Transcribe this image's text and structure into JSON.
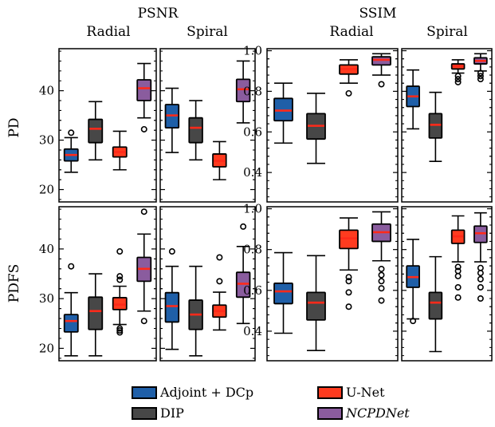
{
  "chart_data": {
    "type": "box",
    "group_titles": [
      "PSNR",
      "SSIM"
    ],
    "column_labels": [
      "Radial",
      "Spiral",
      "Radial",
      "Spiral"
    ],
    "row_labels": [
      "PD",
      "PDFS"
    ],
    "legend": [
      {
        "name": "Adjoint + DCp",
        "color": "#1f5fa8",
        "italic": false
      },
      {
        "name": "U-Net",
        "color": "#ff3b1f",
        "italic": false
      },
      {
        "name": "DIP",
        "color": "#474747",
        "italic": false
      },
      {
        "name": "NCPDNet",
        "color": "#8a5c9e",
        "italic": true
      }
    ],
    "axes": {
      "psnr": {
        "ylim": [
          17.5,
          48.5
        ],
        "ticks": [
          20,
          30,
          40
        ],
        "tick_labels": [
          "20",
          "30",
          "40"
        ]
      },
      "ssim": {
        "ylim": [
          0.255,
          1.01
        ],
        "ticks": [
          0.4,
          0.6,
          0.8,
          1.0
        ],
        "tick_labels": [
          "0.4",
          "0.6",
          "0.8",
          "1.0"
        ]
      }
    },
    "panels": [
      {
        "row": "PD",
        "metric": "PSNR",
        "trajectory": "Radial",
        "boxes": [
          {
            "method": "Adjoint + DCp",
            "whislo": 23.5,
            "q1": 25.8,
            "med": 27.0,
            "q3": 28.2,
            "whishi": 30.5,
            "fliers": [
              31.5
            ]
          },
          {
            "method": "DIP",
            "whislo": 26.0,
            "q1": 29.5,
            "med": 32.3,
            "q3": 34.2,
            "whishi": 37.8,
            "fliers": []
          },
          {
            "method": "U-Net",
            "whislo": 24.0,
            "q1": 26.6,
            "med": 27.6,
            "q3": 28.6,
            "whishi": 31.8,
            "fliers": []
          },
          {
            "method": "NCPDNet",
            "whislo": 34.5,
            "q1": 38.0,
            "med": 40.5,
            "q3": 42.2,
            "whishi": 45.5,
            "fliers": [
              32.2
            ]
          }
        ]
      },
      {
        "row": "PD",
        "metric": "PSNR",
        "trajectory": "Spiral",
        "boxes": [
          {
            "method": "Adjoint + DCp",
            "whislo": 27.5,
            "q1": 32.5,
            "med": 35.0,
            "q3": 37.2,
            "whishi": 40.5,
            "fliers": []
          },
          {
            "method": "DIP",
            "whislo": 26.0,
            "q1": 29.5,
            "med": 32.5,
            "q3": 34.5,
            "whishi": 38.0,
            "fliers": []
          },
          {
            "method": "U-Net",
            "whislo": 22.0,
            "q1": 24.6,
            "med": 25.8,
            "q3": 27.2,
            "whishi": 29.7,
            "fliers": []
          },
          {
            "method": "NCPDNet",
            "whislo": 33.5,
            "q1": 37.8,
            "med": 40.3,
            "q3": 42.3,
            "whishi": 46.0,
            "fliers": []
          }
        ]
      },
      {
        "row": "PD",
        "metric": "SSIM",
        "trajectory": "Radial",
        "boxes": [
          {
            "method": "Adjoint + DCp",
            "whislo": 0.545,
            "q1": 0.655,
            "med": 0.705,
            "q3": 0.765,
            "whishi": 0.84,
            "fliers": []
          },
          {
            "method": "DIP",
            "whislo": 0.445,
            "q1": 0.565,
            "med": 0.63,
            "q3": 0.69,
            "whishi": 0.79,
            "fliers": []
          },
          {
            "method": "U-Net",
            "whislo": 0.84,
            "q1": 0.885,
            "med": 0.91,
            "q3": 0.93,
            "whishi": 0.955,
            "fliers": [
              0.79
            ]
          },
          {
            "method": "NCPDNet",
            "whislo": 0.88,
            "q1": 0.93,
            "med": 0.955,
            "q3": 0.97,
            "whishi": 0.985,
            "fliers": [
              0.835
            ]
          }
        ]
      },
      {
        "row": "PD",
        "metric": "SSIM",
        "trajectory": "Spiral",
        "boxes": [
          {
            "method": "Adjoint + DCp",
            "whislo": 0.615,
            "q1": 0.725,
            "med": 0.775,
            "q3": 0.825,
            "whishi": 0.905,
            "fliers": []
          },
          {
            "method": "DIP",
            "whislo": 0.455,
            "q1": 0.57,
            "med": 0.635,
            "q3": 0.69,
            "whishi": 0.795,
            "fliers": []
          },
          {
            "method": "U-Net",
            "whislo": 0.89,
            "q1": 0.91,
            "med": 0.925,
            "q3": 0.935,
            "whishi": 0.955,
            "fliers": [
              0.875,
              0.86,
              0.845
            ]
          },
          {
            "method": "NCPDNet",
            "whislo": 0.9,
            "q1": 0.935,
            "med": 0.95,
            "q3": 0.965,
            "whishi": 0.985,
            "fliers": [
              0.89,
              0.875,
              0.86
            ]
          }
        ]
      },
      {
        "row": "PDFS",
        "metric": "PSNR",
        "trajectory": "Radial",
        "boxes": [
          {
            "method": "Adjoint + DCp",
            "whislo": 18.5,
            "q1": 23.3,
            "med": 25.5,
            "q3": 26.8,
            "whishi": 31.2,
            "fliers": [
              36.5
            ]
          },
          {
            "method": "DIP",
            "whislo": 18.5,
            "q1": 23.8,
            "med": 27.5,
            "q3": 30.3,
            "whishi": 35.0,
            "fliers": []
          },
          {
            "method": "U-Net",
            "whislo": 24.8,
            "q1": 27.8,
            "med": 28.8,
            "q3": 30.2,
            "whishi": 32.5,
            "fliers": [
              39.5,
              34.5,
              33.8,
              24.0,
              23.6,
              23.2
            ]
          },
          {
            "method": "NCPDNet",
            "whislo": 27.5,
            "q1": 33.5,
            "med": 36.0,
            "q3": 38.3,
            "whishi": 43.0,
            "fliers": [
              47.5,
              25.5
            ]
          }
        ]
      },
      {
        "row": "PDFS",
        "metric": "PSNR",
        "trajectory": "Spiral",
        "boxes": [
          {
            "method": "Adjoint + DCp",
            "whislo": 19.8,
            "q1": 25.3,
            "med": 28.5,
            "q3": 31.2,
            "whishi": 36.5,
            "fliers": [
              39.5
            ]
          },
          {
            "method": "DIP",
            "whislo": 18.5,
            "q1": 23.8,
            "med": 26.8,
            "q3": 29.7,
            "whishi": 36.5,
            "fliers": []
          },
          {
            "method": "U-Net",
            "whislo": 23.7,
            "q1": 26.3,
            "med": 27.5,
            "q3": 28.7,
            "whishi": 31.3,
            "fliers": [
              38.3,
              33.5
            ]
          },
          {
            "method": "NCPDNet",
            "whislo": 25.0,
            "q1": 30.3,
            "med": 33.0,
            "q3": 35.3,
            "whishi": 40.5,
            "fliers": [
              44.5
            ]
          }
        ]
      },
      {
        "row": "PDFS",
        "metric": "SSIM",
        "trajectory": "Radial",
        "boxes": [
          {
            "method": "Adjoint + DCp",
            "whislo": 0.39,
            "q1": 0.535,
            "med": 0.595,
            "q3": 0.635,
            "whishi": 0.785,
            "fliers": []
          },
          {
            "method": "DIP",
            "whislo": 0.305,
            "q1": 0.455,
            "med": 0.54,
            "q3": 0.59,
            "whishi": 0.77,
            "fliers": []
          },
          {
            "method": "U-Net",
            "whislo": 0.7,
            "q1": 0.805,
            "med": 0.855,
            "q3": 0.895,
            "whishi": 0.955,
            "fliers": [
              0.665,
              0.645,
              0.59,
              0.52
            ]
          },
          {
            "method": "NCPDNet",
            "whislo": 0.745,
            "q1": 0.84,
            "med": 0.885,
            "q3": 0.925,
            "whishi": 0.985,
            "fliers": [
              0.705,
              0.675,
              0.645,
              0.61,
              0.55
            ]
          }
        ]
      },
      {
        "row": "PDFS",
        "metric": "SSIM",
        "trajectory": "Spiral",
        "boxes": [
          {
            "method": "Adjoint + DCp",
            "whislo": 0.46,
            "q1": 0.615,
            "med": 0.665,
            "q3": 0.72,
            "whishi": 0.85,
            "fliers": [
              0.45
            ]
          },
          {
            "method": "DIP",
            "whislo": 0.3,
            "q1": 0.46,
            "med": 0.54,
            "q3": 0.59,
            "whishi": 0.765,
            "fliers": []
          },
          {
            "method": "U-Net",
            "whislo": 0.74,
            "q1": 0.83,
            "med": 0.865,
            "q3": 0.895,
            "whishi": 0.965,
            "fliers": [
              0.715,
              0.695,
              0.67,
              0.615,
              0.565
            ]
          },
          {
            "method": "NCPDNet",
            "whislo": 0.74,
            "q1": 0.835,
            "med": 0.88,
            "q3": 0.915,
            "whishi": 0.98,
            "fliers": [
              0.71,
              0.685,
              0.655,
              0.615,
              0.56
            ]
          }
        ]
      }
    ]
  }
}
